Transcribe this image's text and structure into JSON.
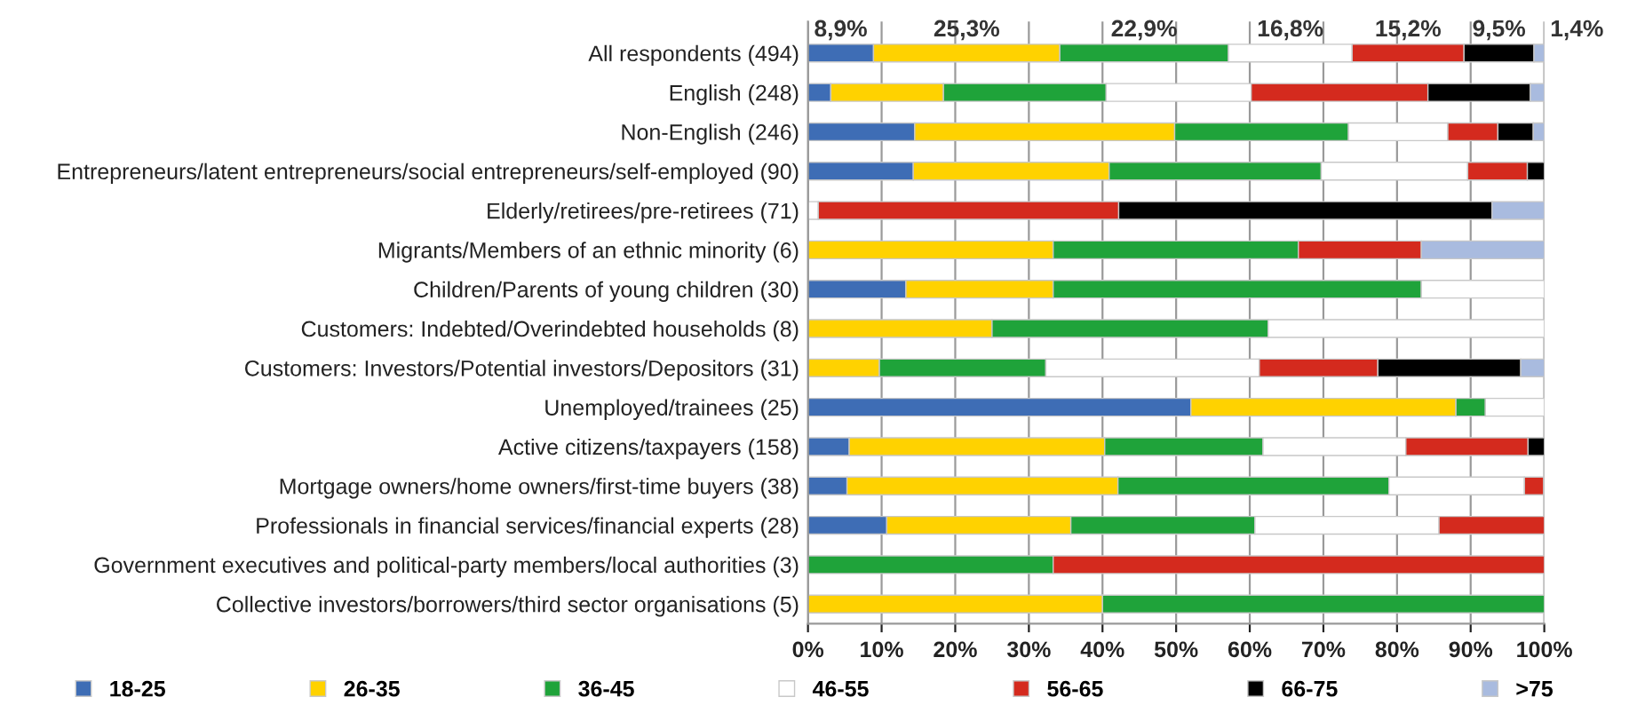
{
  "chart_data": {
    "type": "bar",
    "orientation": "horizontal",
    "stacked": true,
    "categories": [
      "All respondents (494)",
      "English (248)",
      "Non-English (246)",
      "Entrepreneurs/latent entrepreneurs/social entrepreneurs/self-employed (90)",
      "Elderly/retirees/pre-retirees (71)",
      "Migrants/Members of an ethnic minority (6)",
      "Children/Parents of young children (30)",
      "Customers: Indebted/Overindebted households (8)",
      "Customers: Investors/Potential investors/Depositors (31)",
      "Unemployed/trainees (25)",
      "Active citizens/taxpayers (158)",
      "Mortgage owners/home owners/first-time buyers (38)",
      "Professionals in financial services/financial experts (28)",
      "Government executives and political-party members/local authorities (3)",
      "Collective investors/borrowers/third sector organisations (5)"
    ],
    "series": [
      {
        "name": "18-25",
        "color": "#3e6db5",
        "values": [
          8.9,
          3.1,
          14.5,
          14.3,
          0,
          0,
          13.3,
          0,
          0,
          52,
          5.6,
          5.3,
          10.7,
          0,
          0
        ],
        "value_labels": [
          "8,9%",
          null,
          null,
          null,
          null,
          null,
          null,
          null,
          null,
          null,
          null,
          null,
          null,
          null,
          null
        ]
      },
      {
        "name": "26-35",
        "color": "#ffd200",
        "values": [
          25.3,
          15.3,
          35.3,
          26.6,
          0,
          33.3,
          20,
          25,
          9.7,
          36,
          34.7,
          36.8,
          25,
          0,
          40
        ],
        "value_labels": [
          "25,3%",
          null,
          null,
          null,
          null,
          null,
          null,
          null,
          null,
          null,
          null,
          null,
          null,
          null,
          null
        ]
      },
      {
        "name": "36-45",
        "color": "#1fa33a",
        "values": [
          22.9,
          22.1,
          23.6,
          28.8,
          0,
          33.3,
          50,
          37.5,
          22.6,
          4,
          21.5,
          36.8,
          25,
          33.3,
          60
        ],
        "value_labels": [
          "22,9%",
          null,
          null,
          null,
          null,
          null,
          null,
          null,
          null,
          null,
          null,
          null,
          null,
          null,
          null
        ]
      },
      {
        "name": "46-55",
        "color": "#ffffff",
        "values": [
          16.8,
          19.7,
          13.5,
          19.9,
          1.4,
          0,
          16.7,
          37.5,
          29.0,
          8,
          19.4,
          18.4,
          25,
          0,
          0
        ],
        "value_labels": [
          "16,8%",
          null,
          null,
          null,
          null,
          null,
          null,
          null,
          null,
          null,
          null,
          null,
          null,
          null,
          null
        ]
      },
      {
        "name": "56-65",
        "color": "#d42a1e",
        "values": [
          15.2,
          24.0,
          6.8,
          8.1,
          40.8,
          16.7,
          0,
          0,
          16.1,
          0,
          16.6,
          2.6,
          14.3,
          66.7,
          0
        ],
        "value_labels": [
          "15,2%",
          null,
          null,
          null,
          null,
          null,
          null,
          null,
          null,
          null,
          null,
          null,
          null,
          null,
          null
        ]
      },
      {
        "name": "66-75",
        "color": "#000000",
        "values": [
          9.5,
          13.9,
          4.8,
          2.3,
          50.7,
          0,
          0,
          0,
          19.4,
          0,
          2.2,
          0,
          0,
          0,
          0
        ],
        "value_labels": [
          "9,5%",
          null,
          null,
          null,
          null,
          null,
          null,
          null,
          null,
          null,
          null,
          null,
          null,
          null,
          null
        ]
      },
      {
        "name": ">75",
        "color": "#a9bbdf",
        "values": [
          1.4,
          1.9,
          1.5,
          0,
          7.1,
          16.7,
          0,
          0,
          3.2,
          0,
          0,
          0,
          0,
          0,
          0
        ],
        "value_labels": [
          "1,4%",
          null,
          null,
          null,
          null,
          null,
          null,
          null,
          null,
          null,
          null,
          null,
          null,
          null,
          null
        ]
      }
    ],
    "xlim": [
      0,
      100
    ],
    "xticks": [
      {
        "value": 0,
        "label": "0%"
      },
      {
        "value": 10,
        "label": "10%"
      },
      {
        "value": 20,
        "label": "20%"
      },
      {
        "value": 30,
        "label": "30%"
      },
      {
        "value": 40,
        "label": "40%"
      },
      {
        "value": 50,
        "label": "50%"
      },
      {
        "value": 60,
        "label": "60%"
      },
      {
        "value": 70,
        "label": "70%"
      },
      {
        "value": 80,
        "label": "80%"
      },
      {
        "value": 90,
        "label": "90%"
      },
      {
        "value": 100,
        "label": "100%"
      }
    ],
    "grid": "x",
    "legend": "bottom"
  }
}
